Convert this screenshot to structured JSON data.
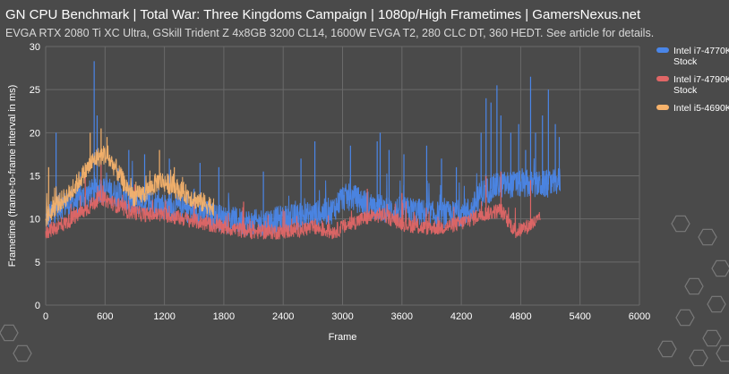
{
  "colors": {
    "background": "#4a4a4a",
    "grid": "#6a6a6a",
    "text": "#ffffff",
    "subtitle": "#d8d8d8"
  },
  "chart_data": {
    "type": "line",
    "title": "GN CPU Benchmark | Total War: Three Kingdoms Campaign | 1080p/High Frametimes | GamersNexus.net",
    "subtitle": "EVGA RTX 2080 Ti XC Ultra, GSkill Trident Z 4x8GB 3200 CL14, 1600W EVGA T2, 280 CLC DT, 360 HEDT. See article for details.",
    "xlabel": "Frame",
    "ylabel": "Frametime (frame-to-frame interval in ms)",
    "xlim": [
      0,
      6000
    ],
    "ylim": [
      0,
      30
    ],
    "xticks": [
      0,
      600,
      1200,
      1800,
      2400,
      3000,
      3600,
      4200,
      4800,
      5400,
      6000
    ],
    "yticks": [
      0,
      5,
      10,
      15,
      20,
      25,
      30
    ],
    "grid": true,
    "legend_position": "right",
    "series": [
      {
        "name": "Intel i7-4770K Stock",
        "legend_lines": [
          "Intel i7-4770K",
          "Stock"
        ],
        "color": "#4a86e8",
        "length": 5200,
        "baseline": [
          [
            0,
            10
          ],
          [
            150,
            11.5
          ],
          [
            300,
            12
          ],
          [
            450,
            13
          ],
          [
            550,
            13.5
          ],
          [
            700,
            13
          ],
          [
            850,
            12
          ],
          [
            1000,
            12
          ],
          [
            1200,
            11.5
          ],
          [
            1500,
            11
          ],
          [
            1800,
            10
          ],
          [
            2100,
            9.5
          ],
          [
            2400,
            10
          ],
          [
            2700,
            10.5
          ],
          [
            2900,
            11
          ],
          [
            3000,
            12.5
          ],
          [
            3100,
            12.5
          ],
          [
            3300,
            11.5
          ],
          [
            3500,
            11
          ],
          [
            3700,
            11
          ],
          [
            3900,
            10.5
          ],
          [
            4100,
            10.5
          ],
          [
            4300,
            11
          ],
          [
            4400,
            13
          ],
          [
            4600,
            14
          ],
          [
            4800,
            14
          ],
          [
            4950,
            14
          ],
          [
            5100,
            14
          ],
          [
            5200,
            14.5
          ]
        ],
        "noise": 1.6,
        "spikes": [
          [
            490,
            28.3
          ],
          [
            105,
            20
          ],
          [
            520,
            22
          ],
          [
            840,
            18
          ],
          [
            1000,
            17.5
          ],
          [
            1250,
            17
          ],
          [
            1560,
            16.5
          ],
          [
            1750,
            16
          ],
          [
            2200,
            15.5
          ],
          [
            2580,
            17
          ],
          [
            2720,
            19
          ],
          [
            3080,
            18.5
          ],
          [
            3350,
            19
          ],
          [
            3380,
            20
          ],
          [
            3470,
            18
          ],
          [
            3620,
            17.5
          ],
          [
            3850,
            18.5
          ],
          [
            4000,
            17
          ],
          [
            4150,
            16
          ],
          [
            4400,
            20
          ],
          [
            4450,
            24
          ],
          [
            4500,
            23.5
          ],
          [
            4560,
            25.5
          ],
          [
            4600,
            22
          ],
          [
            4700,
            20
          ],
          [
            4780,
            21
          ],
          [
            4850,
            18
          ],
          [
            4900,
            26.5
          ],
          [
            4950,
            20
          ],
          [
            5020,
            22
          ],
          [
            5080,
            25
          ],
          [
            5150,
            21
          ],
          [
            5190,
            19.5
          ]
        ]
      },
      {
        "name": "Intel i7-4790K Stock",
        "legend_lines": [
          "Intel i7-4790K",
          "Stock"
        ],
        "color": "#e06666",
        "length": 5000,
        "baseline": [
          [
            0,
            8.5
          ],
          [
            200,
            9.5
          ],
          [
            400,
            11
          ],
          [
            550,
            12.5
          ],
          [
            650,
            12
          ],
          [
            800,
            11
          ],
          [
            1000,
            10.5
          ],
          [
            1200,
            10.5
          ],
          [
            1400,
            10
          ],
          [
            1600,
            9.5
          ],
          [
            1800,
            9
          ],
          [
            2100,
            8.5
          ],
          [
            2400,
            8.5
          ],
          [
            2700,
            9
          ],
          [
            2900,
            8.5
          ],
          [
            3000,
            9
          ],
          [
            3200,
            10
          ],
          [
            3400,
            10.5
          ],
          [
            3600,
            9.5
          ],
          [
            3800,
            9
          ],
          [
            4000,
            9
          ],
          [
            4200,
            9.5
          ],
          [
            4400,
            10.5
          ],
          [
            4600,
            11
          ],
          [
            4750,
            8.5
          ],
          [
            4850,
            9
          ],
          [
            5000,
            10
          ]
        ],
        "noise": 0.9,
        "spikes": [
          [
            560,
            17
          ],
          [
            400,
            15.5
          ],
          [
            900,
            14
          ],
          [
            2000,
            12
          ],
          [
            3250,
            13.5
          ],
          [
            3600,
            13
          ],
          [
            4450,
            15
          ],
          [
            4600,
            15.5
          ],
          [
            4900,
            14.5
          ]
        ]
      },
      {
        "name": "Intel i5-4690K",
        "legend_lines": [
          "Intel i5-4690K"
        ],
        "color": "#f6b26b",
        "length": 1700,
        "baseline": [
          [
            0,
            10
          ],
          [
            100,
            11.5
          ],
          [
            250,
            13
          ],
          [
            400,
            15.5
          ],
          [
            500,
            17
          ],
          [
            600,
            17.5
          ],
          [
            700,
            16
          ],
          [
            800,
            14
          ],
          [
            900,
            12.5
          ],
          [
            1000,
            13
          ],
          [
            1150,
            14.5
          ],
          [
            1250,
            14
          ],
          [
            1400,
            13
          ],
          [
            1550,
            12
          ],
          [
            1700,
            11.5
          ]
        ],
        "noise": 1.2,
        "spikes": [
          [
            30,
            16
          ],
          [
            450,
            20
          ],
          [
            560,
            20.5
          ],
          [
            620,
            19.5
          ],
          [
            1150,
            18
          ],
          [
            1300,
            16
          ]
        ]
      }
    ]
  }
}
